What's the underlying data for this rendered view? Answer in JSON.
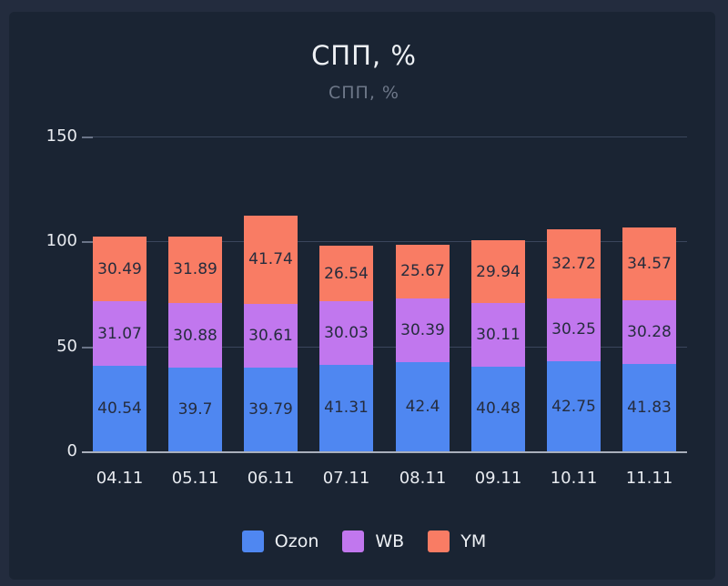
{
  "title": "СПП, %",
  "subtitle": "СПП, %",
  "colors": {
    "background_outer": "#232c3e",
    "background_panel": "#1a2433",
    "ozon": "#4f87f1",
    "wb": "#c177ee",
    "ym": "#f97c64",
    "value_label_text": "#252c3d",
    "axis_line": "#a9afbb",
    "grid_line": "#3a465c",
    "tick_label": "#e8ebf0",
    "subtitle_text": "#6e7889"
  },
  "chart_data": {
    "type": "bar",
    "stacked": true,
    "title": "СПП, %",
    "subtitle": "СПП, %",
    "categories": [
      "04.11",
      "05.11",
      "06.11",
      "07.11",
      "08.11",
      "09.11",
      "10.11",
      "11.11"
    ],
    "series": [
      {
        "name": "Ozon",
        "color": "#4f87f1",
        "values": [
          40.54,
          39.7,
          39.79,
          41.31,
          42.4,
          40.48,
          42.75,
          41.83
        ]
      },
      {
        "name": "WB",
        "color": "#c177ee",
        "values": [
          31.07,
          30.88,
          30.61,
          30.03,
          30.39,
          30.11,
          30.25,
          30.28
        ]
      },
      {
        "name": "YM",
        "color": "#f97c64",
        "values": [
          30.49,
          31.89,
          41.74,
          26.54,
          25.67,
          29.94,
          32.72,
          34.57
        ]
      }
    ],
    "xlabel": "",
    "ylabel": "",
    "ylim": [
      0,
      150
    ],
    "yticks": [
      0,
      50,
      100,
      150
    ],
    "grid": true,
    "value_labels": true,
    "legend_position": "bottom"
  }
}
